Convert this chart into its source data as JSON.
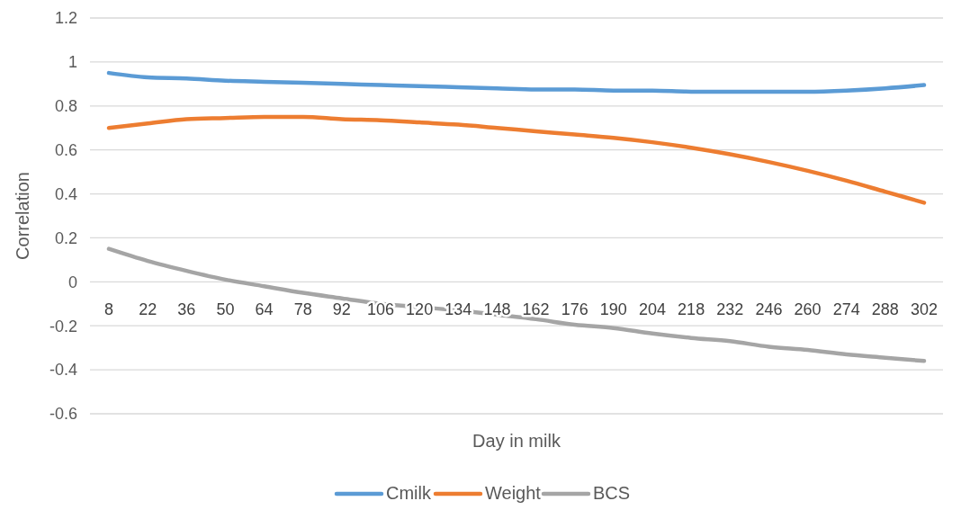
{
  "chart_data": {
    "type": "line",
    "xlabel": "Day in milk",
    "ylabel": "Correlation",
    "categories": [
      "8",
      "22",
      "36",
      "50",
      "64",
      "78",
      "92",
      "106",
      "120",
      "134",
      "148",
      "162",
      "176",
      "190",
      "204",
      "218",
      "232",
      "246",
      "260",
      "274",
      "288",
      "302"
    ],
    "series": [
      {
        "name": "Cmilk",
        "color": "#5b9bd5",
        "values": [
          0.95,
          0.93,
          0.925,
          0.915,
          0.91,
          0.905,
          0.9,
          0.895,
          0.89,
          0.885,
          0.88,
          0.875,
          0.875,
          0.87,
          0.87,
          0.865,
          0.865,
          0.865,
          0.865,
          0.87,
          0.88,
          0.895
        ]
      },
      {
        "name": "Weight",
        "color": "#ed7d31",
        "values": [
          0.7,
          0.72,
          0.74,
          0.745,
          0.75,
          0.75,
          0.74,
          0.735,
          0.725,
          0.715,
          0.7,
          0.685,
          0.67,
          0.655,
          0.635,
          0.61,
          0.58,
          0.545,
          0.505,
          0.46,
          0.41,
          0.36
        ]
      },
      {
        "name": "BCS",
        "color": "#a5a5a5",
        "values": [
          0.15,
          0.095,
          0.05,
          0.01,
          -0.02,
          -0.05,
          -0.075,
          -0.1,
          -0.115,
          -0.13,
          -0.15,
          -0.17,
          -0.195,
          -0.21,
          -0.235,
          -0.255,
          -0.27,
          -0.295,
          -0.31,
          -0.33,
          -0.345,
          -0.36
        ]
      }
    ],
    "ylim": [
      -0.6,
      1.2
    ],
    "yticks": [
      -0.6,
      -0.4,
      -0.2,
      0,
      0.2,
      0.4,
      0.6,
      0.8,
      1,
      1.2
    ],
    "grid": "y",
    "legend": "bottom",
    "marker": "none",
    "line_style": "solid"
  }
}
